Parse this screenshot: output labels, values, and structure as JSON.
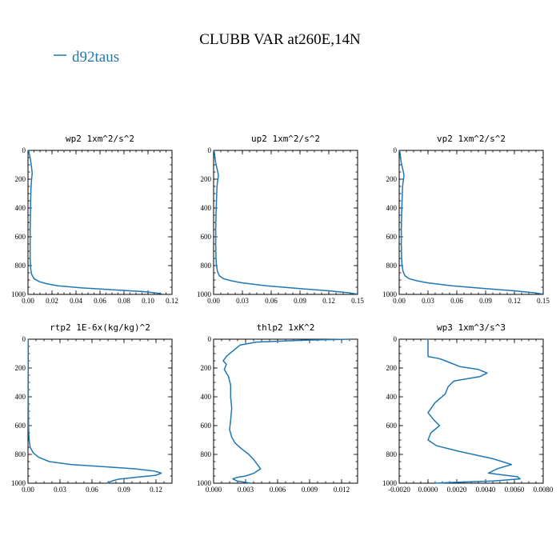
{
  "title": "CLUBB VAR at260E,14N",
  "legend": {
    "label": "d92taus",
    "color": "#1f77b4"
  },
  "chart_data": [
    {
      "type": "line",
      "title": "wp2  1xm^2/s^2",
      "xlim": [
        0,
        0.12
      ],
      "ylim": [
        1000,
        0
      ],
      "xticks": [
        0,
        0.02,
        0.04,
        0.06,
        0.08,
        0.1,
        0.12
      ],
      "xtick_labels": [
        "0.00",
        "0.02",
        "0.04",
        "0.06",
        "0.08",
        "0.10",
        "0.12"
      ],
      "yticks": [
        0,
        200,
        400,
        600,
        800,
        1000
      ],
      "ytick_labels": [
        "0",
        "200",
        "400",
        "600",
        "800",
        "1000"
      ],
      "series": [
        {
          "name": "d92taus",
          "x": [
            0.0005,
            0.002,
            0.003,
            0.0035,
            0.003,
            0.0025,
            0.0022,
            0.002,
            0.0018,
            0.0018,
            0.0018,
            0.0022,
            0.003,
            0.005,
            0.009,
            0.015,
            0.025,
            0.045,
            0.075,
            0.095,
            0.105,
            0.111
          ],
          "y": [
            0,
            60,
            120,
            160,
            200,
            260,
            350,
            450,
            550,
            650,
            750,
            820,
            860,
            890,
            910,
            925,
            940,
            955,
            970,
            980,
            988,
            995
          ]
        }
      ]
    },
    {
      "type": "line",
      "title": "up2  1xm^2/s^2",
      "xlim": [
        0,
        0.15
      ],
      "ylim": [
        1000,
        0
      ],
      "xticks": [
        0,
        0.03,
        0.06,
        0.09,
        0.12,
        0.15
      ],
      "xtick_labels": [
        "0.00",
        "0.03",
        "0.06",
        "0.09",
        "0.12",
        "0.15"
      ],
      "yticks": [
        0,
        200,
        400,
        600,
        800,
        1000
      ],
      "ytick_labels": [
        "0",
        "200",
        "400",
        "600",
        "800",
        "1000"
      ],
      "series": [
        {
          "name": "d92taus",
          "x": [
            0.0005,
            0.002,
            0.004,
            0.005,
            0.0045,
            0.0035,
            0.003,
            0.0025,
            0.0022,
            0.0022,
            0.0025,
            0.003,
            0.004,
            0.006,
            0.01,
            0.018,
            0.03,
            0.055,
            0.09,
            0.12,
            0.14,
            0.149
          ],
          "y": [
            0,
            80,
            140,
            170,
            200,
            250,
            350,
            450,
            550,
            650,
            750,
            800,
            840,
            870,
            890,
            905,
            920,
            940,
            960,
            975,
            988,
            997
          ]
        }
      ]
    },
    {
      "type": "line",
      "title": "vp2  1xm^2/s^2",
      "xlim": [
        0,
        0.15
      ],
      "ylim": [
        1000,
        0
      ],
      "xticks": [
        0,
        0.03,
        0.06,
        0.09,
        0.12,
        0.15
      ],
      "xtick_labels": [
        "0.00",
        "0.03",
        "0.06",
        "0.09",
        "0.12",
        "0.15"
      ],
      "yticks": [
        0,
        200,
        400,
        600,
        800,
        1000
      ],
      "ytick_labels": [
        "0",
        "200",
        "400",
        "600",
        "800",
        "1000"
      ],
      "series": [
        {
          "name": "d92taus",
          "x": [
            0.0005,
            0.002,
            0.004,
            0.005,
            0.0045,
            0.0035,
            0.003,
            0.0025,
            0.0022,
            0.0022,
            0.0025,
            0.003,
            0.004,
            0.006,
            0.01,
            0.018,
            0.03,
            0.055,
            0.09,
            0.12,
            0.14,
            0.149
          ],
          "y": [
            0,
            80,
            140,
            170,
            200,
            250,
            350,
            450,
            550,
            650,
            750,
            800,
            840,
            870,
            890,
            905,
            920,
            940,
            960,
            975,
            988,
            997
          ]
        }
      ]
    },
    {
      "type": "line",
      "title": "rtp2  1E-6x(kg/kg)^2",
      "xlim": [
        0,
        0.135
      ],
      "ylim": [
        1000,
        0
      ],
      "xticks": [
        0,
        0.03,
        0.06,
        0.09,
        0.12
      ],
      "xtick_labels": [
        "0.00",
        "0.03",
        "0.06",
        "0.09",
        "0.12"
      ],
      "yticks": [
        0,
        200,
        400,
        600,
        800,
        1000
      ],
      "ytick_labels": [
        "0",
        "200",
        "400",
        "600",
        "800",
        "1000"
      ],
      "series": [
        {
          "name": "d92taus",
          "x": [
            0.0002,
            0.0002,
            0.0003,
            0.0005,
            0.001,
            0.002,
            0.005,
            0.01,
            0.02,
            0.04,
            0.07,
            0.1,
            0.118,
            0.125,
            0.12,
            0.1,
            0.085,
            0.08,
            0.076,
            0.075
          ],
          "y": [
            0,
            200,
            400,
            600,
            700,
            750,
            790,
            820,
            850,
            870,
            885,
            900,
            915,
            930,
            945,
            960,
            972,
            982,
            992,
            1000
          ]
        }
      ]
    },
    {
      "type": "line",
      "title": "thlp2  1xK^2",
      "xlim": [
        0,
        0.0135
      ],
      "ylim": [
        1000,
        0
      ],
      "xticks": [
        0,
        0.003,
        0.006,
        0.009,
        0.012
      ],
      "xtick_labels": [
        "0.000",
        "0.003",
        "0.006",
        "0.009",
        "0.012"
      ],
      "yticks": [
        0,
        200,
        400,
        600,
        800,
        1000
      ],
      "ytick_labels": [
        "0",
        "200",
        "400",
        "600",
        "800",
        "1000"
      ],
      "series": [
        {
          "name": "d92taus",
          "x": [
            0.0128,
            0.008,
            0.004,
            0.0025,
            0.002,
            0.0015,
            0.0012,
            0.0009,
            0.0012,
            0.001,
            0.0014,
            0.0016,
            0.0016,
            0.0017,
            0.0016,
            0.0015,
            0.0017,
            0.002,
            0.0026,
            0.0033,
            0.0038,
            0.0044,
            0.0038,
            0.003,
            0.0022,
            0.0018,
            0.0022,
            0.0035
          ],
          "y": [
            0,
            8,
            20,
            40,
            70,
            100,
            120,
            150,
            175,
            210,
            260,
            320,
            400,
            480,
            560,
            630,
            680,
            720,
            760,
            800,
            840,
            900,
            930,
            950,
            960,
            970,
            985,
            1000
          ]
        }
      ]
    },
    {
      "type": "line",
      "title": "wp3  1xm^3/s^3",
      "xlim": [
        -0.002,
        0.008
      ],
      "ylim": [
        1000,
        0
      ],
      "xticks": [
        -0.002,
        0,
        0.002,
        0.004,
        0.006,
        0.008
      ],
      "xtick_labels": [
        "-0.0020",
        "0.0000",
        "0.0020",
        "0.0040",
        "0.0060",
        "0.0080"
      ],
      "yticks": [
        0,
        200,
        400,
        600,
        800,
        1000
      ],
      "ytick_labels": [
        "0",
        "200",
        "400",
        "600",
        "800",
        "1000"
      ],
      "series": [
        {
          "name": "d92taus",
          "x": [
            0.0,
            0.0,
            0.0,
            0.0008,
            0.0012,
            0.0022,
            0.0035,
            0.0041,
            0.0036,
            0.0018,
            0.0014,
            0.0012,
            0.0005,
            0.0,
            0.0004,
            0.0008,
            0.0002,
            0.0,
            0.0006,
            0.0022,
            0.0045,
            0.0058,
            0.0048,
            0.0042,
            0.0062,
            0.0064,
            0.0045,
            0.0015,
            0.0005
          ],
          "y": [
            0,
            60,
            120,
            135,
            150,
            190,
            210,
            235,
            260,
            290,
            330,
            380,
            440,
            510,
            560,
            600,
            650,
            700,
            740,
            780,
            830,
            870,
            900,
            930,
            955,
            970,
            985,
            995,
            1000
          ]
        }
      ]
    }
  ]
}
